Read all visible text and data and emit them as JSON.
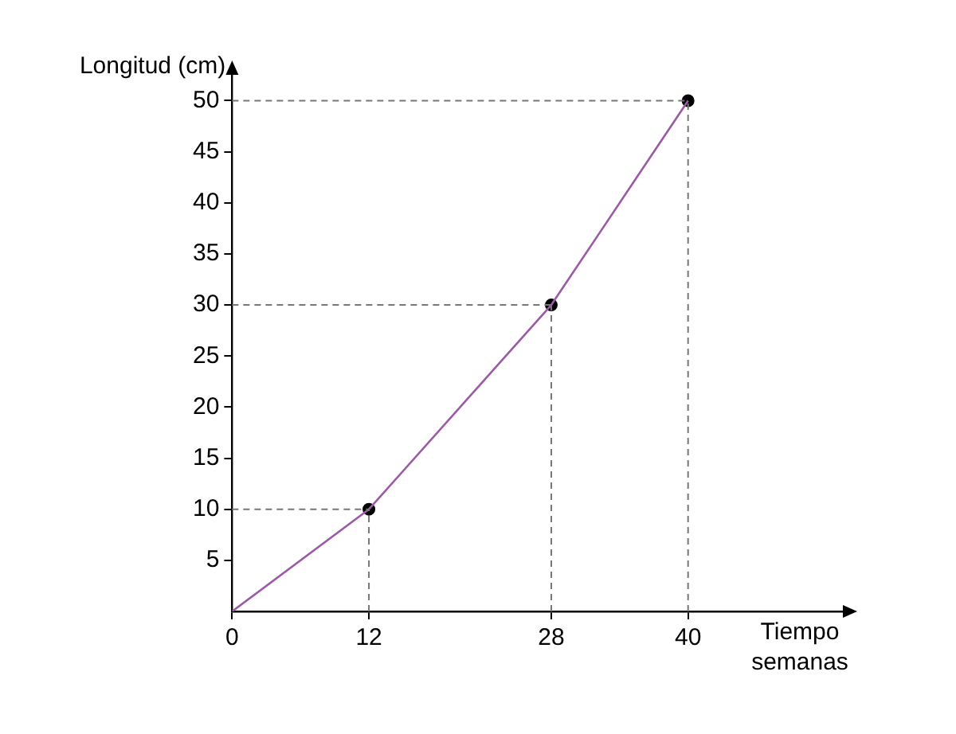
{
  "chart_data": {
    "type": "line",
    "xlabel": "Tiempo\nsemanas",
    "ylabel": "Longitud (cm)",
    "x": [
      0,
      12,
      28,
      40
    ],
    "series": [
      {
        "type": "line",
        "color": "#9b59a6",
        "values": [
          0,
          10,
          30,
          50
        ],
        "marker": "none"
      },
      {
        "type": "scatter",
        "color": "#000000",
        "x": [
          12,
          28,
          40
        ],
        "values": [
          10,
          30,
          50
        ],
        "marker": "circle"
      }
    ],
    "xlim": [
      0,
      54
    ],
    "ylim": [
      0,
      53
    ],
    "xticks": [
      0,
      12,
      28,
      40
    ],
    "yticks": [
      5,
      10,
      15,
      20,
      25,
      30,
      35,
      40,
      45,
      50
    ],
    "ref_lines": [
      {
        "axis": "y",
        "value": 10,
        "line_style": "dashed",
        "color": "#777777"
      },
      {
        "axis": "y",
        "value": 30,
        "line_style": "dashed",
        "color": "#777777"
      },
      {
        "axis": "y",
        "value": 50,
        "line_style": "dashed",
        "color": "#777777"
      },
      {
        "axis": "x",
        "value": 12,
        "line_style": "dashed",
        "color": "#777777"
      },
      {
        "axis": "x",
        "value": 28,
        "line_style": "dashed",
        "color": "#777777"
      },
      {
        "axis": "x",
        "value": 40,
        "line_style": "dashed",
        "color": "#777777"
      }
    ],
    "grid": false,
    "legend": false
  }
}
